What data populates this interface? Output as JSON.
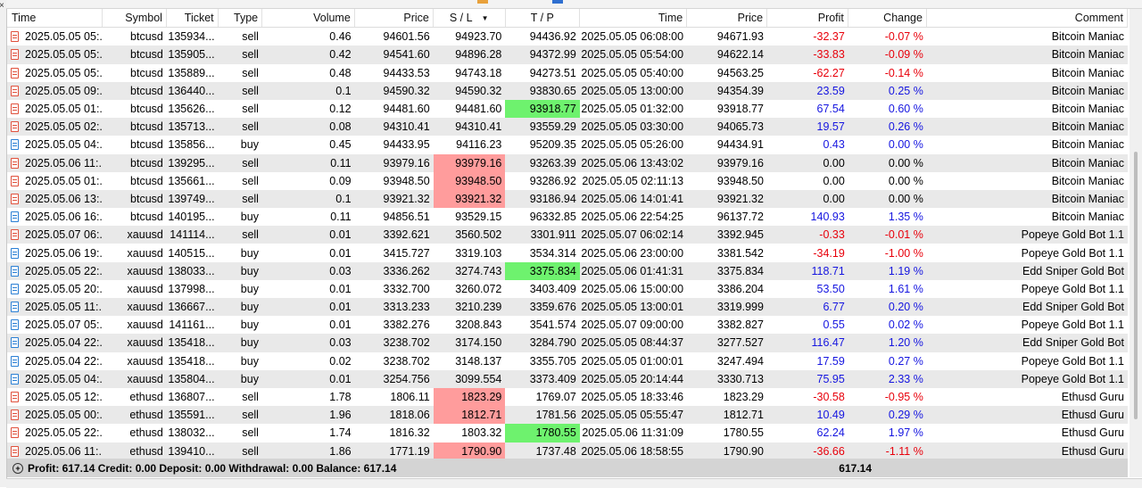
{
  "colors": {
    "sl_highlight": "#ff9c9c",
    "tp_highlight": "#6ef26e",
    "negative": "#e8000b",
    "positive": "#1515e0",
    "sell_icon": "#e0503c",
    "buy_icon": "#2a7fd4"
  },
  "columns": {
    "time": "Time",
    "symbol": "Symbol",
    "ticket": "Ticket",
    "type": "Type",
    "volume": "Volume",
    "price": "Price",
    "sl": "S / L",
    "tp": "T / P",
    "close_time": "Time",
    "close_price": "Price",
    "profit": "Profit",
    "change": "Change",
    "comment": "Comment"
  },
  "rows": [
    {
      "time": "2025.05.05 05:...",
      "symbol": "btcusd",
      "ticket": "135934...",
      "type": "sell",
      "volume": "0.46",
      "price": "94601.56",
      "sl": "94923.70",
      "tp": "94436.92",
      "close_time": "2025.05.05 06:08:00",
      "close_price": "94671.93",
      "profit": "-32.37",
      "change": "-0.07 %",
      "comment": "Bitcoin Maniac",
      "sign": "neg",
      "hl": ""
    },
    {
      "time": "2025.05.05 05:...",
      "symbol": "btcusd",
      "ticket": "135905...",
      "type": "sell",
      "volume": "0.42",
      "price": "94541.60",
      "sl": "94896.28",
      "tp": "94372.99",
      "close_time": "2025.05.05 05:54:00",
      "close_price": "94622.14",
      "profit": "-33.83",
      "change": "-0.09 %",
      "comment": "Bitcoin Maniac",
      "sign": "neg",
      "hl": ""
    },
    {
      "time": "2025.05.05 05:...",
      "symbol": "btcusd",
      "ticket": "135889...",
      "type": "sell",
      "volume": "0.48",
      "price": "94433.53",
      "sl": "94743.18",
      "tp": "94273.51",
      "close_time": "2025.05.05 05:40:00",
      "close_price": "94563.25",
      "profit": "-62.27",
      "change": "-0.14 %",
      "comment": "Bitcoin Maniac",
      "sign": "neg",
      "hl": ""
    },
    {
      "time": "2025.05.05 09:...",
      "symbol": "btcusd",
      "ticket": "136440...",
      "type": "sell",
      "volume": "0.1",
      "price": "94590.32",
      "sl": "94590.32",
      "tp": "93830.65",
      "close_time": "2025.05.05 13:00:00",
      "close_price": "94354.39",
      "profit": "23.59",
      "change": "0.25 %",
      "comment": "Bitcoin Maniac",
      "sign": "pos",
      "hl": ""
    },
    {
      "time": "2025.05.05 01:...",
      "symbol": "btcusd",
      "ticket": "135626...",
      "type": "sell",
      "volume": "0.12",
      "price": "94481.60",
      "sl": "94481.60",
      "tp": "93918.77",
      "close_time": "2025.05.05 01:32:00",
      "close_price": "93918.77",
      "profit": "67.54",
      "change": "0.60 %",
      "comment": "Bitcoin Maniac",
      "sign": "pos",
      "hl": "tp"
    },
    {
      "time": "2025.05.05 02:...",
      "symbol": "btcusd",
      "ticket": "135713...",
      "type": "sell",
      "volume": "0.08",
      "price": "94310.41",
      "sl": "94310.41",
      "tp": "93559.29",
      "close_time": "2025.05.05 03:30:00",
      "close_price": "94065.73",
      "profit": "19.57",
      "change": "0.26 %",
      "comment": "Bitcoin Maniac",
      "sign": "pos",
      "hl": ""
    },
    {
      "time": "2025.05.05 04:...",
      "symbol": "btcusd",
      "ticket": "135856...",
      "type": "buy",
      "volume": "0.45",
      "price": "94433.95",
      "sl": "94116.23",
      "tp": "95209.35",
      "close_time": "2025.05.05 05:26:00",
      "close_price": "94434.91",
      "profit": "0.43",
      "change": "0.00 %",
      "comment": "Bitcoin Maniac",
      "sign": "pos",
      "hl": ""
    },
    {
      "time": "2025.05.06 11:...",
      "symbol": "btcusd",
      "ticket": "139295...",
      "type": "sell",
      "volume": "0.11",
      "price": "93979.16",
      "sl": "93979.16",
      "tp": "93263.39",
      "close_time": "2025.05.06 13:43:02",
      "close_price": "93979.16",
      "profit": "0.00",
      "change": "0.00 %",
      "comment": "Bitcoin Maniac",
      "sign": "zero",
      "hl": "sl"
    },
    {
      "time": "2025.05.05 01:...",
      "symbol": "btcusd",
      "ticket": "135661...",
      "type": "sell",
      "volume": "0.09",
      "price": "93948.50",
      "sl": "93948.50",
      "tp": "93286.92",
      "close_time": "2025.05.05 02:11:13",
      "close_price": "93948.50",
      "profit": "0.00",
      "change": "0.00 %",
      "comment": "Bitcoin Maniac",
      "sign": "zero",
      "hl": "sl"
    },
    {
      "time": "2025.05.06 13:...",
      "symbol": "btcusd",
      "ticket": "139749...",
      "type": "sell",
      "volume": "0.1",
      "price": "93921.32",
      "sl": "93921.32",
      "tp": "93186.94",
      "close_time": "2025.05.06 14:01:41",
      "close_price": "93921.32",
      "profit": "0.00",
      "change": "0.00 %",
      "comment": "Bitcoin Maniac",
      "sign": "zero",
      "hl": "sl"
    },
    {
      "time": "2025.05.06 16:...",
      "symbol": "btcusd",
      "ticket": "140195...",
      "type": "buy",
      "volume": "0.11",
      "price": "94856.51",
      "sl": "93529.15",
      "tp": "96332.85",
      "close_time": "2025.05.06 22:54:25",
      "close_price": "96137.72",
      "profit": "140.93",
      "change": "1.35 %",
      "comment": "Bitcoin Maniac",
      "sign": "pos",
      "hl": ""
    },
    {
      "time": "2025.05.07 06:...",
      "symbol": "xauusd",
      "ticket": "141114...",
      "type": "sell",
      "volume": "0.01",
      "price": "3392.621",
      "sl": "3560.502",
      "tp": "3301.911",
      "close_time": "2025.05.07 06:02:14",
      "close_price": "3392.945",
      "profit": "-0.33",
      "change": "-0.01 %",
      "comment": "Popeye Gold Bot 1.1",
      "sign": "neg",
      "hl": ""
    },
    {
      "time": "2025.05.06 19:...",
      "symbol": "xauusd",
      "ticket": "140515...",
      "type": "buy",
      "volume": "0.01",
      "price": "3415.727",
      "sl": "3319.103",
      "tp": "3534.314",
      "close_time": "2025.05.06 23:00:00",
      "close_price": "3381.542",
      "profit": "-34.19",
      "change": "-1.00 %",
      "comment": "Popeye Gold Bot 1.1",
      "sign": "neg",
      "hl": ""
    },
    {
      "time": "2025.05.05 22:...",
      "symbol": "xauusd",
      "ticket": "138033...",
      "type": "buy",
      "volume": "0.03",
      "price": "3336.262",
      "sl": "3274.743",
      "tp": "3375.834",
      "close_time": "2025.05.06 01:41:31",
      "close_price": "3375.834",
      "profit": "118.71",
      "change": "1.19 %",
      "comment": "Edd Sniper Gold Bot",
      "sign": "pos",
      "hl": "tp"
    },
    {
      "time": "2025.05.05 20:...",
      "symbol": "xauusd",
      "ticket": "137998...",
      "type": "buy",
      "volume": "0.01",
      "price": "3332.700",
      "sl": "3260.072",
      "tp": "3403.409",
      "close_time": "2025.05.06 15:00:00",
      "close_price": "3386.204",
      "profit": "53.50",
      "change": "1.61 %",
      "comment": "Popeye Gold Bot 1.1",
      "sign": "pos",
      "hl": ""
    },
    {
      "time": "2025.05.05 11:...",
      "symbol": "xauusd",
      "ticket": "136667...",
      "type": "buy",
      "volume": "0.01",
      "price": "3313.233",
      "sl": "3210.239",
      "tp": "3359.676",
      "close_time": "2025.05.05 13:00:01",
      "close_price": "3319.999",
      "profit": "6.77",
      "change": "0.20 %",
      "comment": "Edd Sniper Gold Bot",
      "sign": "pos",
      "hl": ""
    },
    {
      "time": "2025.05.07 05:...",
      "symbol": "xauusd",
      "ticket": "141161...",
      "type": "buy",
      "volume": "0.01",
      "price": "3382.276",
      "sl": "3208.843",
      "tp": "3541.574",
      "close_time": "2025.05.07 09:00:00",
      "close_price": "3382.827",
      "profit": "0.55",
      "change": "0.02 %",
      "comment": "Popeye Gold Bot 1.1",
      "sign": "pos",
      "hl": ""
    },
    {
      "time": "2025.05.04 22:...",
      "symbol": "xauusd",
      "ticket": "135418...",
      "type": "buy",
      "volume": "0.03",
      "price": "3238.702",
      "sl": "3174.150",
      "tp": "3284.790",
      "close_time": "2025.05.05 08:44:37",
      "close_price": "3277.527",
      "profit": "116.47",
      "change": "1.20 %",
      "comment": "Edd Sniper Gold Bot",
      "sign": "pos",
      "hl": ""
    },
    {
      "time": "2025.05.04 22:...",
      "symbol": "xauusd",
      "ticket": "135418...",
      "type": "buy",
      "volume": "0.02",
      "price": "3238.702",
      "sl": "3148.137",
      "tp": "3355.705",
      "close_time": "2025.05.05 01:00:01",
      "close_price": "3247.494",
      "profit": "17.59",
      "change": "0.27 %",
      "comment": "Popeye Gold Bot 1.1",
      "sign": "pos",
      "hl": ""
    },
    {
      "time": "2025.05.05 04:...",
      "symbol": "xauusd",
      "ticket": "135804...",
      "type": "buy",
      "volume": "0.01",
      "price": "3254.756",
      "sl": "3099.554",
      "tp": "3373.409",
      "close_time": "2025.05.05 20:14:44",
      "close_price": "3330.713",
      "profit": "75.95",
      "change": "2.33 %",
      "comment": "Popeye Gold Bot 1.1",
      "sign": "pos",
      "hl": ""
    },
    {
      "time": "2025.05.05 12:...",
      "symbol": "ethusd",
      "ticket": "136807...",
      "type": "sell",
      "volume": "1.78",
      "price": "1806.11",
      "sl": "1823.29",
      "tp": "1769.07",
      "close_time": "2025.05.05 18:33:46",
      "close_price": "1823.29",
      "profit": "-30.58",
      "change": "-0.95 %",
      "comment": "Ethusd Guru",
      "sign": "neg",
      "hl": "sl"
    },
    {
      "time": "2025.05.05 00:...",
      "symbol": "ethusd",
      "ticket": "135591...",
      "type": "sell",
      "volume": "1.96",
      "price": "1818.06",
      "sl": "1812.71",
      "tp": "1781.56",
      "close_time": "2025.05.05 05:55:47",
      "close_price": "1812.71",
      "profit": "10.49",
      "change": "0.29 %",
      "comment": "Ethusd Guru",
      "sign": "pos",
      "hl": "sl"
    },
    {
      "time": "2025.05.05 22:...",
      "symbol": "ethusd",
      "ticket": "138032...",
      "type": "sell",
      "volume": "1.74",
      "price": "1816.32",
      "sl": "1803.32",
      "tp": "1780.55",
      "close_time": "2025.05.06 11:31:09",
      "close_price": "1780.55",
      "profit": "62.24",
      "change": "1.97 %",
      "comment": "Ethusd Guru",
      "sign": "pos",
      "hl": "tp"
    },
    {
      "time": "2025.05.06 11:...",
      "symbol": "ethusd",
      "ticket": "139410...",
      "type": "sell",
      "volume": "1.86",
      "price": "1771.19",
      "sl": "1790.90",
      "tp": "1737.48",
      "close_time": "2025.05.06 18:58:55",
      "close_price": "1790.90",
      "profit": "-36.66",
      "change": "-1.11 %",
      "comment": "Ethusd Guru",
      "sign": "neg",
      "hl": "sl"
    }
  ],
  "summary": {
    "text": "Profit: 617.14  Credit: 0.00  Deposit: 0.00  Withdrawal: 0.00  Balance: 617.14",
    "total_profit": "617.14"
  }
}
